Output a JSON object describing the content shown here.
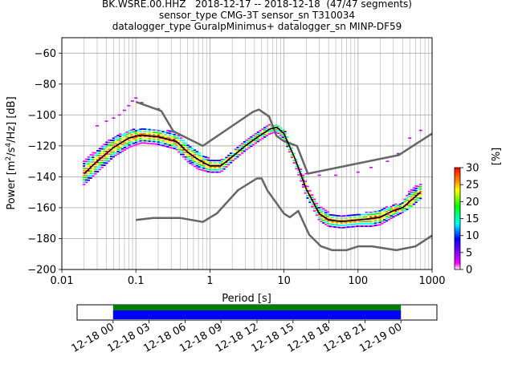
{
  "figure": {
    "title_lines": [
      "BK.WSRE.00.HHZ   2018-12-17 -- 2018-12-18  (47/47 segments)",
      "sensor_type CMG-3T sensor_sn T310034",
      "datalogger_type GuralpMinimus+ datalogger_sn MINP-DF59"
    ]
  },
  "chart_data": [
    {
      "type": "heatmap",
      "subtype": "probabilistic-power-spectral-density",
      "xlabel": "Period [s]",
      "ylabel_parts": [
        "Power [m",
        "2",
        "/s",
        "4",
        "/Hz] [dB]"
      ],
      "x_scale": "log",
      "xlim": [
        0.01,
        1000
      ],
      "ylim": [
        -200,
        -50
      ],
      "x_ticks": [
        0.01,
        0.1,
        1,
        10,
        100,
        1000
      ],
      "x_tick_labels": [
        "0.01",
        "0.1",
        "1",
        "10",
        "100",
        "1000"
      ],
      "y_ticks": [
        -200,
        -180,
        -160,
        -140,
        -120,
        -100,
        -80,
        -60
      ],
      "y_tick_labels": [
        "−200",
        "−180",
        "−160",
        "−140",
        "−120",
        "−100",
        "−80",
        "−60"
      ],
      "grid": true,
      "colorbar": {
        "label": "[%]",
        "range": [
          0,
          30
        ],
        "ticks": [
          0,
          5,
          10,
          15,
          20,
          25,
          30
        ],
        "tick_labels": [
          "0",
          "5",
          "10",
          "15",
          "20",
          "25",
          "30"
        ],
        "colormap": [
          "#ffffff",
          "#ff00ff",
          "#0000ff",
          "#00ffff",
          "#00ff00",
          "#ffff00",
          "#ff8000",
          "#ff0000"
        ]
      },
      "colors": {
        "noise_models": "#666666",
        "mean_line": "#000000",
        "grid": "#b0b0b0"
      },
      "series": [
        {
          "role": "high-noise-model",
          "color": "#666666",
          "x": [
            0.1,
            0.22,
            0.32,
            0.8,
            3.8,
            4.6,
            6.3,
            7.9,
            10,
            15,
            21,
            354,
            1000
          ],
          "y": [
            -91.5,
            -97.4,
            -110.5,
            -120,
            -98,
            -96.5,
            -101,
            -113.5,
            -117,
            -120,
            -138,
            -126,
            -112
          ]
        },
        {
          "role": "low-noise-model",
          "color": "#666666",
          "x": [
            0.1,
            0.17,
            0.4,
            0.8,
            1.24,
            2.4,
            4.3,
            5,
            6,
            10,
            12,
            15.6,
            21.9,
            31.6,
            45,
            70,
            101,
            154,
            328,
            600,
            1000
          ],
          "y": [
            -168,
            -166.7,
            -166.7,
            -169.2,
            -163.7,
            -148.6,
            -141.1,
            -141.1,
            -149,
            -163.8,
            -166.2,
            -162.1,
            -177.5,
            -185,
            -187.5,
            -187.5,
            -185,
            -185,
            -187.5,
            -185,
            -178
          ]
        },
        {
          "role": "mean",
          "color": "#000000",
          "x": [
            0.02,
            0.03,
            0.05,
            0.08,
            0.12,
            0.2,
            0.35,
            0.5,
            0.7,
            1.0,
            1.4,
            2.0,
            3.0,
            4.5,
            6.5,
            8,
            10,
            14,
            20,
            30,
            40,
            60,
            100,
            150,
            200,
            300,
            400,
            500,
            700
          ],
          "y": [
            -138,
            -130,
            -121,
            -115,
            -113,
            -114,
            -117,
            -124,
            -129,
            -133,
            -133,
            -127,
            -120,
            -114,
            -109,
            -108,
            -112,
            -128,
            -148,
            -164,
            -168,
            -169,
            -168,
            -167,
            -166,
            -162,
            -160,
            -156,
            -150
          ]
        }
      ],
      "band": {
        "x": [
          0.02,
          0.03,
          0.05,
          0.08,
          0.12,
          0.2,
          0.35,
          0.5,
          0.7,
          1.0,
          1.4,
          2.0,
          3.0,
          4.5,
          6.5,
          8,
          10,
          14,
          20,
          30,
          40,
          60,
          100,
          150,
          200,
          300,
          400,
          500,
          700
        ],
        "y_low": [
          -145,
          -137,
          -127,
          -121,
          -118,
          -119,
          -122,
          -130,
          -135,
          -137,
          -137,
          -130,
          -123,
          -117,
          -112,
          -111,
          -115,
          -132,
          -152,
          -168,
          -172,
          -173,
          -172,
          -172,
          -171,
          -166,
          -163,
          -160,
          -154
        ],
        "y_high": [
          -130,
          -122,
          -114,
          -110,
          -108,
          -109,
          -111,
          -118,
          -124,
          -128,
          -129,
          -124,
          -117,
          -111,
          -106,
          -106,
          -109,
          -125,
          -144,
          -159,
          -163,
          -165,
          -164,
          -162,
          -161,
          -158,
          -156,
          -148,
          -144
        ]
      },
      "outliers": {
        "x": [
          0.03,
          0.04,
          0.05,
          0.06,
          0.07,
          0.08,
          0.09,
          0.1,
          0.12,
          0.2,
          20,
          30,
          50,
          100,
          150,
          250,
          350,
          500,
          700
        ],
        "y": [
          -107,
          -104,
          -102,
          -100,
          -97,
          -94,
          -91,
          -89,
          -92,
          -96,
          -138,
          -139,
          -139,
          -137,
          -134,
          -130,
          -125,
          -115,
          -110
        ]
      }
    },
    {
      "type": "timeline",
      "x_tick_labels": [
        "12-18 00",
        "12-18 03",
        "12-18 06",
        "12-18 09",
        "12-18 12",
        "12-18 15",
        "12-18 18",
        "12-18 21",
        "12-19 00"
      ],
      "x_range": [
        "2018-12-17 21:00",
        "2018-12-19 03:00"
      ],
      "bars": [
        {
          "start": "2018-12-18 00:00",
          "end": "2018-12-19 00:00",
          "color": "#008000"
        },
        {
          "start": "2018-12-18 00:00",
          "end": "2018-12-19 00:00",
          "color": "#0000ff"
        }
      ]
    }
  ]
}
